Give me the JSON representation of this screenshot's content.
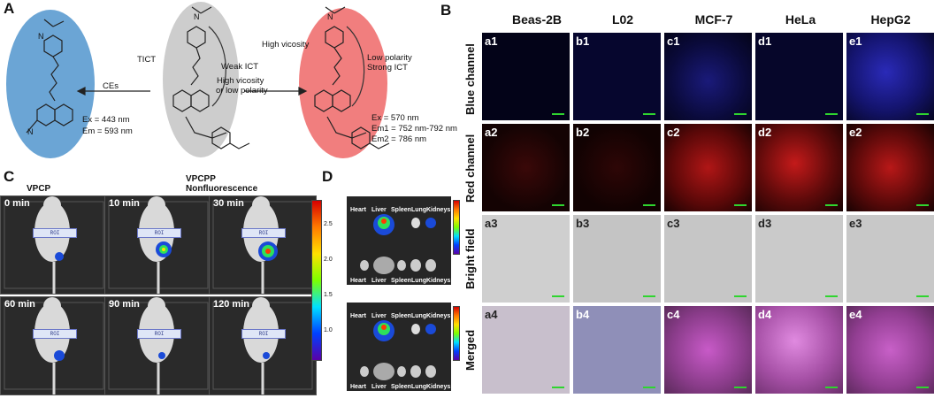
{
  "panels": {
    "a": "A",
    "b": "B",
    "c": "C",
    "d": "D"
  },
  "panelA": {
    "tict": "TICT",
    "weak_ict": "Weak ICT",
    "high_viscosity": "High vicosity",
    "or_low_polarity": "or low polarity",
    "high_vicosity_top": "High vicosity",
    "low_polarity": "Low polarity",
    "strong_ict": "Strong ICT",
    "ces": "CEs",
    "left_ex": "Ex = 443 nm",
    "left_em": "Em = 593 nm",
    "right_ex": "Ex = 570 nm",
    "right_em1": "Em1 = 752 nm-792 nm",
    "right_em2": "Em2 = 786 nm"
  },
  "panelB": {
    "columns": [
      "Beas-2B",
      "L02",
      "MCF-7",
      "HeLa",
      "HepG2"
    ],
    "rows": [
      "Blue channel",
      "Red channel",
      "Bright field",
      "Merged"
    ],
    "cells": [
      [
        "a1",
        "b1",
        "c1",
        "d1",
        "e1"
      ],
      [
        "a2",
        "b2",
        "c2",
        "d2",
        "e2"
      ],
      [
        "a3",
        "b3",
        "c3",
        "d3",
        "e3"
      ],
      [
        "a4",
        "b4",
        "c4",
        "d4",
        "e4"
      ]
    ]
  },
  "panelC": {
    "vpcp": "VPCP",
    "vpcpp": "VPCPP",
    "nonfluor": "Nonfluorescence",
    "frames": [
      {
        "time": "0 min",
        "roi": "ROI 1=9.63e+09"
      },
      {
        "time": "10 min",
        "roi": "ROI 1=1.796e+10"
      },
      {
        "time": "30 min",
        "roi": "ROI 1=3.006e+10"
      },
      {
        "time": "60 min",
        "roi": "ROI 1=1.044e+10"
      },
      {
        "time": "90 min",
        "roi": "ROI 1=9.438e+09"
      },
      {
        "time": "120 min",
        "roi": "ROI 1=8.732e+09"
      }
    ],
    "colorbar_ticks": [
      "2.5",
      "2.0",
      "1.5",
      "1.0"
    ],
    "colors": {
      "frame": "#2a2a2a",
      "mouse": "#d9d9d9"
    }
  },
  "panelD": {
    "organs_top": [
      "Heart",
      "Liver",
      "Spleen",
      "Lung",
      "Kidneys"
    ],
    "organs_bottom": [
      "Heart",
      "Liver",
      "Spleen",
      "Lung",
      "Kidneys"
    ],
    "organs_top2": [
      "Heart",
      "Liver",
      "Spleen",
      "Lung",
      "Kidneys"
    ],
    "organs_bottom2": [
      "Heart",
      "Liver",
      "Spleen",
      "Lung",
      "Kidneys"
    ]
  }
}
